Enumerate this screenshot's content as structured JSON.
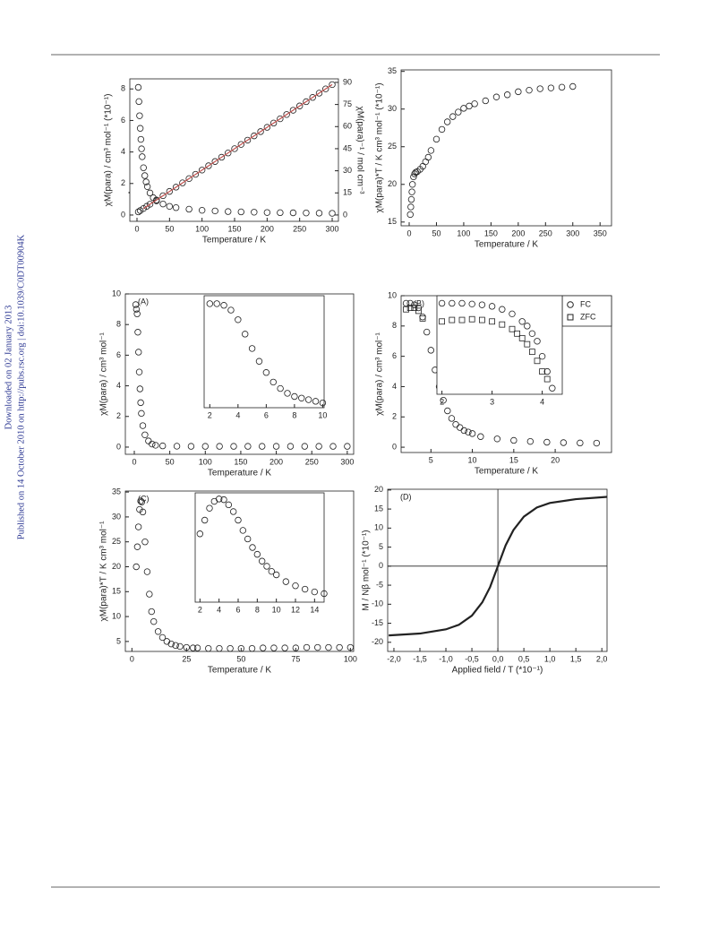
{
  "sidebar": [
    "Downloaded on 02 January 2013",
    "Published on 14 October 2010 on http://pubs.rsc.org | doi:10.1039/C0DT00904K"
  ],
  "chart_data": [
    {
      "type": "scatter",
      "xlabel": "Temperature / K",
      "ylabel": "χM(para) / cm³ mol⁻¹ (*10⁻¹)",
      "y2label": "χM(para)⁻¹ / mol cm⁻³",
      "xlim": [
        -11,
        309.6
      ],
      "ylim": [
        -0.4,
        8.64
      ],
      "y2lim": [
        -4.3,
        92.4
      ],
      "xticks": [
        0,
        50,
        100,
        150,
        200,
        250,
        300
      ],
      "yticks": [
        0,
        2,
        4,
        6,
        8
      ],
      "y2ticks": [
        0,
        15,
        30,
        45,
        60,
        75,
        90
      ],
      "series": [
        {
          "color": "#222222",
          "marker": "circle",
          "x": [
            2,
            3,
            4,
            5,
            6,
            7,
            8,
            10,
            12,
            14,
            16,
            20,
            25,
            30,
            40,
            50,
            60,
            80,
            100,
            120,
            140,
            160,
            180,
            200,
            220,
            240,
            260,
            280,
            300
          ],
          "values": [
            8.1,
            7.2,
            6.3,
            5.5,
            4.8,
            4.2,
            3.7,
            3.0,
            2.5,
            2.1,
            1.8,
            1.4,
            1.1,
            0.9,
            0.7,
            0.55,
            0.47,
            0.37,
            0.3,
            0.26,
            0.22,
            0.2,
            0.18,
            0.16,
            0.15,
            0.14,
            0.13,
            0.12,
            0.11
          ]
        },
        {
          "color": "#222222",
          "marker": "circle",
          "axis": "y2",
          "x": [
            2,
            5,
            10,
            15,
            20,
            30,
            40,
            50,
            60,
            70,
            80,
            90,
            100,
            110,
            120,
            130,
            140,
            150,
            160,
            170,
            180,
            190,
            200,
            210,
            220,
            230,
            240,
            250,
            260,
            270,
            280,
            290,
            300
          ],
          "values": [
            2.1,
            3,
            4.4,
            5.9,
            7.3,
            10.2,
            13.1,
            16,
            18.9,
            21.8,
            24.7,
            27.6,
            30.5,
            33.4,
            36.3,
            39.2,
            42.1,
            45,
            47.9,
            50.8,
            53.7,
            56.6,
            59.5,
            62.4,
            65.3,
            68.2,
            71.1,
            74,
            76.9,
            79.8,
            82.7,
            85.6,
            88.5
          ]
        },
        {
          "color": "#c0504d",
          "marker": "line",
          "axis": "y2",
          "x": [
            10,
            300
          ],
          "values": [
            4.4,
            88.5
          ]
        }
      ]
    },
    {
      "type": "scatter",
      "xlabel": "Temperature / K",
      "ylabel": "χM(para)*T / K cm³ mol⁻¹ (*10⁻¹)",
      "xlim": [
        -14.8,
        371
      ],
      "ylim": [
        14.5,
        35.2
      ],
      "xticks": [
        0,
        50,
        100,
        150,
        200,
        250,
        300,
        350
      ],
      "yticks": [
        15,
        20,
        25,
        30,
        35
      ],
      "series": [
        {
          "color": "#222222",
          "marker": "circle",
          "x": [
            2,
            3,
            4,
            5,
            6,
            8,
            10,
            12,
            15,
            20,
            25,
            30,
            35,
            40,
            50,
            60,
            70,
            80,
            90,
            100,
            110,
            120,
            140,
            160,
            180,
            200,
            220,
            240,
            260,
            280,
            300
          ],
          "values": [
            16,
            17,
            18,
            19,
            20,
            21,
            21.4,
            21.6,
            21.7,
            22,
            22.4,
            23,
            23.6,
            24.5,
            26,
            27.3,
            28.3,
            29,
            29.6,
            30.1,
            30.4,
            30.7,
            31.1,
            31.6,
            31.9,
            32.3,
            32.5,
            32.7,
            32.8,
            32.9,
            33
          ]
        }
      ]
    },
    {
      "type": "scatter",
      "xlabel": "Temperature / K",
      "ylabel": "χM(para) / cm³ mol⁻¹",
      "annotation": "(A)",
      "xlim": [
        -12.6,
        309
      ],
      "ylim": [
        -0.47,
        10
      ],
      "xticks": [
        0,
        50,
        100,
        150,
        200,
        250,
        300
      ],
      "yticks": [
        0,
        2,
        4,
        6,
        8,
        10
      ],
      "series": [
        {
          "color": "#222222",
          "marker": "circle",
          "x": [
            2,
            3,
            4,
            5,
            6,
            7,
            8,
            9,
            10,
            12,
            15,
            20,
            25,
            30,
            40,
            60,
            80,
            100,
            120,
            140,
            160,
            180,
            200,
            220,
            240,
            260,
            280,
            300
          ],
          "values": [
            9.3,
            9.0,
            8.7,
            7.5,
            6.2,
            4.9,
            3.8,
            2.9,
            2.2,
            1.4,
            0.8,
            0.4,
            0.2,
            0.12,
            0.08,
            0.06,
            0.05,
            0.05,
            0.05,
            0.05,
            0.05,
            0.05,
            0.05,
            0.05,
            0.05,
            0.05,
            0.05,
            0.05
          ]
        }
      ]
    },
    {
      "type": "scatter",
      "xlim": [
        1.6,
        10.1
      ],
      "ylim": [
        3,
        10
      ],
      "xticks": [
        2,
        4,
        6,
        8,
        10
      ],
      "series": [
        {
          "color": "#222222",
          "marker": "circle",
          "x": [
            2,
            2.5,
            3,
            3.5,
            4,
            4.5,
            5,
            5.5,
            6,
            6.5,
            7,
            7.5,
            8,
            8.5,
            9,
            9.5,
            10
          ],
          "values": [
            9.5,
            9.5,
            9.4,
            9.1,
            8.5,
            7.6,
            6.7,
            5.9,
            5.2,
            4.6,
            4.2,
            3.9,
            3.7,
            3.6,
            3.5,
            3.4,
            3.3
          ]
        }
      ]
    },
    {
      "type": "scatter",
      "xlabel": "Temperature / K",
      "ylabel": "χM(para) / cm³ mol⁻¹",
      "annotation": "(B)",
      "legend": "upper right",
      "xlim": [
        1.4,
        26.8
      ],
      "ylim": [
        -0.35,
        10
      ],
      "xticks": [
        5,
        10,
        15,
        20
      ],
      "yticks": [
        0,
        2,
        4,
        6,
        8,
        10
      ],
      "series": [
        {
          "name": "FC",
          "color": "#222222",
          "marker": "circle",
          "x": [
            2,
            2.5,
            3,
            3.5,
            4,
            4.5,
            5,
            5.5,
            6,
            6.5,
            7,
            7.5,
            8,
            8.5,
            9,
            9.5,
            10,
            11,
            13,
            15,
            17,
            19,
            21,
            23,
            25
          ],
          "values": [
            9.5,
            9.5,
            9.4,
            9.2,
            8.6,
            7.6,
            6.4,
            5.1,
            4.0,
            3.1,
            2.4,
            1.9,
            1.5,
            1.3,
            1.1,
            1.0,
            0.9,
            0.7,
            0.55,
            0.45,
            0.38,
            0.33,
            0.3,
            0.28,
            0.27
          ]
        },
        {
          "name": "ZFC",
          "color": "#222222",
          "marker": "square",
          "x": [
            2,
            2.5,
            3,
            3.5,
            4
          ],
          "values": [
            9.1,
            9.2,
            9.2,
            9.0,
            8.5
          ]
        }
      ]
    },
    {
      "type": "scatter",
      "xlim": [
        1.9,
        4.4
      ],
      "ylim": [
        3.5,
        10
      ],
      "xticks": [
        2,
        3,
        4
      ],
      "series": [
        {
          "color": "#222222",
          "marker": "circle",
          "x": [
            2,
            2.2,
            2.4,
            2.6,
            2.8,
            3,
            3.2,
            3.4,
            3.6,
            3.7,
            3.8,
            3.9,
            4,
            4.1,
            4.2
          ],
          "values": [
            9.5,
            9.5,
            9.5,
            9.45,
            9.4,
            9.3,
            9.1,
            8.8,
            8.3,
            8.0,
            7.5,
            7.0,
            6.0,
            5.0,
            3.9
          ]
        },
        {
          "color": "#222222",
          "marker": "square",
          "x": [
            2,
            2.2,
            2.4,
            2.6,
            2.8,
            3,
            3.2,
            3.4,
            3.5,
            3.6,
            3.7,
            3.8,
            3.9,
            4,
            4.1
          ],
          "values": [
            8.3,
            8.4,
            8.4,
            8.45,
            8.4,
            8.3,
            8.1,
            7.8,
            7.5,
            7.2,
            6.8,
            6.3,
            5.7,
            5.0,
            4.5
          ]
        }
      ]
    },
    {
      "type": "scatter",
      "xlabel": "Temperature / K",
      "ylabel": "χM(para)*T / K cm³ mol⁻¹",
      "annotation": "(C)",
      "xlim": [
        -3,
        101.5
      ],
      "ylim": [
        3,
        35.2
      ],
      "xticks": [
        0,
        25,
        50,
        75,
        100
      ],
      "yticks": [
        5,
        10,
        15,
        20,
        25,
        30,
        35
      ],
      "series": [
        {
          "color": "#222222",
          "marker": "circle",
          "x": [
            2,
            2.5,
            3,
            3.5,
            4,
            4.5,
            5,
            6,
            7,
            8,
            9,
            10,
            12,
            14,
            16,
            18,
            20,
            22,
            25,
            28,
            30,
            35,
            40,
            45,
            50,
            55,
            60,
            65,
            70,
            75,
            80,
            85,
            90,
            95,
            100
          ],
          "values": [
            20,
            24,
            28,
            31.5,
            33.2,
            33,
            31,
            25,
            19,
            14.5,
            11,
            9,
            7,
            5.8,
            5,
            4.5,
            4.2,
            4,
            3.8,
            3.7,
            3.7,
            3.6,
            3.6,
            3.6,
            3.6,
            3.6,
            3.7,
            3.7,
            3.7,
            3.7,
            3.8,
            3.8,
            3.8,
            3.8,
            3.8
          ]
        }
      ]
    },
    {
      "type": "scatter",
      "xlim": [
        1.5,
        15
      ],
      "ylim": [
        3,
        35
      ],
      "xticks": [
        2,
        4,
        6,
        8,
        10,
        12,
        14
      ],
      "series": [
        {
          "color": "#222222",
          "marker": "circle",
          "x": [
            2,
            2.5,
            3,
            3.5,
            4,
            4.5,
            5,
            5.5,
            6,
            6.5,
            7,
            7.5,
            8,
            8.5,
            9,
            9.5,
            10,
            11,
            12,
            13,
            14,
            15
          ],
          "values": [
            23,
            27,
            30.5,
            32.5,
            33.2,
            33,
            31.5,
            29.5,
            27,
            24,
            21.5,
            19,
            17,
            15,
            13.5,
            12,
            11,
            9,
            7.8,
            6.8,
            6,
            5.5
          ]
        }
      ]
    },
    {
      "type": "line",
      "xlabel": "Applied field / T (*10⁻¹)",
      "ylabel": "M / Nβ mol⁻¹ (*10⁻¹)",
      "annotation": "(D)",
      "zero_lines": true,
      "xlim": [
        -2.12,
        2.1
      ],
      "ylim": [
        -22.4,
        20.2
      ],
      "xticks": [
        {
          "value": -2,
          "label": "-2,0"
        },
        {
          "value": -1.5,
          "label": "-1,5"
        },
        {
          "value": -1,
          "label": "-1,0"
        },
        {
          "value": -0.5,
          "label": "-0,5"
        },
        {
          "value": 0,
          "label": "0,0"
        },
        {
          "value": 0.5,
          "label": "0,5"
        },
        {
          "value": 1,
          "label": "1,0"
        },
        {
          "value": 1.5,
          "label": "1,5"
        },
        {
          "value": 2,
          "label": "2,0"
        }
      ],
      "yticks": [
        -20,
        -15,
        -10,
        -5,
        0,
        5,
        10,
        15,
        20
      ],
      "series": [
        {
          "color": "#222222",
          "x": [
            -2.1,
            -1.5,
            -1,
            -0.75,
            -0.5,
            -0.3,
            -0.15,
            0,
            0.15,
            0.3,
            0.5,
            0.75,
            1,
            1.5,
            2.1
          ],
          "values": [
            -18.2,
            -17.7,
            -16.6,
            -15.4,
            -13,
            -9.5,
            -5.5,
            0,
            5.5,
            9.5,
            13,
            15.4,
            16.6,
            17.6,
            18.2
          ]
        }
      ]
    }
  ]
}
